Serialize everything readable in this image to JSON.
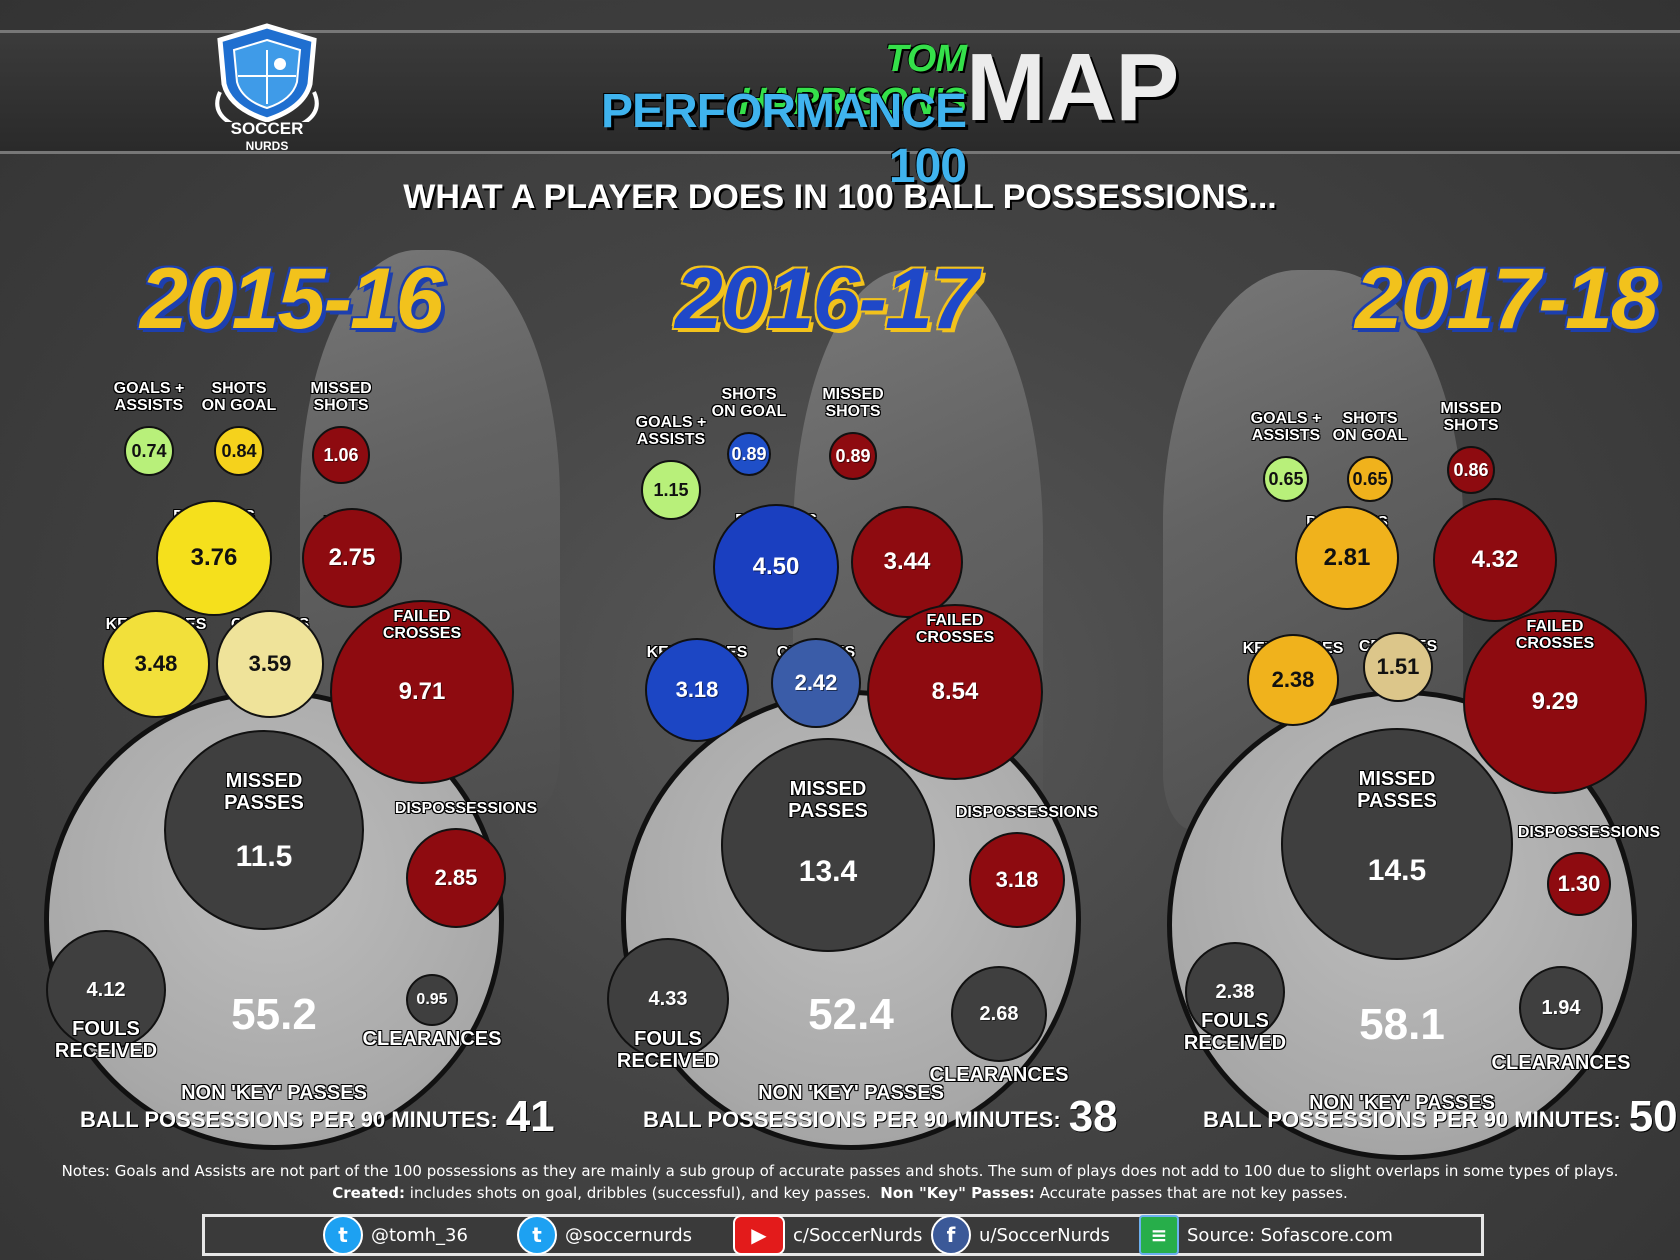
{
  "header": {
    "logo_line1": "SOCCER",
    "logo_line2": "NURDS",
    "title_name": "TOM HARRISON'S",
    "title_sub": "PERFORMANCE 100",
    "title_map": "MAP",
    "subtitle": "WHAT A PLAYER DOES IN 100 BALL POSSESSIONS..."
  },
  "labels": {
    "goals_assists": "GOALS +\nASSISTS",
    "shots_on_goal": "SHOTS\nON GOAL",
    "missed_shots": "MISSED\nSHOTS",
    "dribbles": "DRIBBLES",
    "failed_dribbles": "FAILED\nDRIBBLES",
    "key_passes": "KEY PASSES",
    "crosses": "CROSSES",
    "failed_crosses": "FAILED\nCROSSES",
    "missed_passes": "MISSED\nPASSES",
    "dispossessions": "DISPOSSESSIONS",
    "fouls_received": "FOULS\nRECEIVED",
    "non_key_passes": "NON 'KEY' PASSES",
    "clearances": "CLEARANCES",
    "possessions": "BALL POSSESSIONS PER 90 MINUTES:"
  },
  "seasons": [
    {
      "season": "2015-16",
      "goals_assists": "0.74",
      "shots_on_goal": "0.84",
      "missed_shots": "1.06",
      "dribbles": "3.76",
      "failed_dribbles": "2.75",
      "key_passes": "3.48",
      "crosses": "3.59",
      "failed_crosses": "9.71",
      "missed_passes": "11.5",
      "dispossessions": "2.85",
      "fouls_received": "4.12",
      "non_key_passes": "55.2",
      "clearances": "0.95",
      "possessions_per_90": "41",
      "colors": {
        "goals": "#b8f07a",
        "shots": "#f5d21c",
        "dribbles": "#f5e01c",
        "key": "#f2e03a",
        "crosses": "#efe39a",
        "red": "#8e0b10"
      }
    },
    {
      "season": "2016-17",
      "goals_assists": "1.15",
      "shots_on_goal": "0.89",
      "missed_shots": "0.89",
      "dribbles": "4.50",
      "failed_dribbles": "3.44",
      "key_passes": "3.18",
      "crosses": "2.42",
      "failed_crosses": "8.54",
      "missed_passes": "13.4",
      "dispossessions": "3.18",
      "fouls_received": "4.33",
      "non_key_passes": "52.4",
      "clearances": "2.68",
      "possessions_per_90": "38",
      "colors": {
        "goals": "#b8f07a",
        "shots": "#1f4fc8",
        "dribbles": "#1a3fc0",
        "key": "#1c46c4",
        "crosses": "#3a5ca8",
        "red": "#8e0b10"
      }
    },
    {
      "season": "2017-18",
      "goals_assists": "0.65",
      "shots_on_goal": "0.65",
      "missed_shots": "0.86",
      "dribbles": "2.81",
      "failed_dribbles": "4.32",
      "key_passes": "2.38",
      "crosses": "1.51",
      "failed_crosses": "9.29",
      "missed_passes": "14.5",
      "dispossessions": "1.30",
      "fouls_received": "2.38",
      "non_key_passes": "58.1",
      "clearances": "1.94",
      "possessions_per_90": "50",
      "colors": {
        "goals": "#b8f07a",
        "shots": "#f0b21c",
        "dribbles": "#f0b21c",
        "key": "#f0b21c",
        "crosses": "#dcc68a",
        "red": "#8e0b10"
      }
    }
  ],
  "notes": {
    "line1": "Notes: Goals and Assists are not part of the 100 possessions as they are mainly a sub group of accurate passes and shots. The sum of plays does not add to 100 due to slight overlaps in some types of plays.",
    "created_label": "Created:",
    "created_text": " includes shots on goal, dribbles (successful), and key passes.",
    "nonkey_label": "Non \"Key\" Passes:",
    "nonkey_text": " Accurate passes that are not key passes."
  },
  "footer": {
    "twitter1": "@tomh_36",
    "twitter2": "@soccernurds",
    "youtube": "c/SoccerNurds",
    "facebook": "u/SoccerNurds",
    "source": "Source: Sofascore.com",
    "icons": [
      "twitter-icon",
      "twitter-icon",
      "youtube-icon",
      "facebook-icon",
      "sofascore-icon"
    ]
  }
}
